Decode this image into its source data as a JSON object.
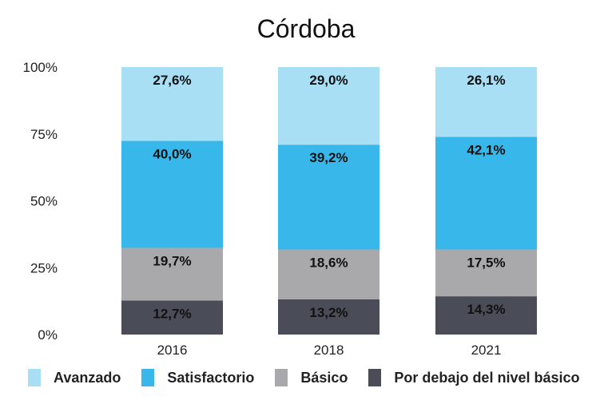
{
  "chart_data": {
    "type": "stacked-bar",
    "title": "Córdoba",
    "categories": [
      "2016",
      "2018",
      "2021"
    ],
    "ylim": [
      0,
      100
    ],
    "yticks": [
      "0%",
      "25%",
      "50%",
      "75%",
      "100%"
    ],
    "grid": false,
    "legend_position": "bottom",
    "series": [
      {
        "name": "Por debajo del nivel básico",
        "color": "#4a4d58",
        "values": [
          12.7,
          13.2,
          14.3
        ],
        "labels": [
          "12,7%",
          "13,2%",
          "14,3%"
        ]
      },
      {
        "name": "Básico",
        "color": "#a9a8ab",
        "values": [
          19.7,
          18.6,
          17.5
        ],
        "labels": [
          "19,7%",
          "18,6%",
          "17,5%"
        ]
      },
      {
        "name": "Satisfactorio",
        "color": "#38b8ea",
        "values": [
          40.0,
          39.2,
          42.1
        ],
        "labels": [
          "40,0%",
          "39,2%",
          "42,1%"
        ]
      },
      {
        "name": "Avanzado",
        "color": "#a8dff5",
        "values": [
          27.6,
          29.0,
          26.1
        ],
        "labels": [
          "27,6%",
          "29,0%",
          "26,1%"
        ]
      }
    ],
    "legend_order": [
      "Avanzado",
      "Satisfactorio",
      "Básico",
      "Por debajo del nivel básico"
    ]
  }
}
